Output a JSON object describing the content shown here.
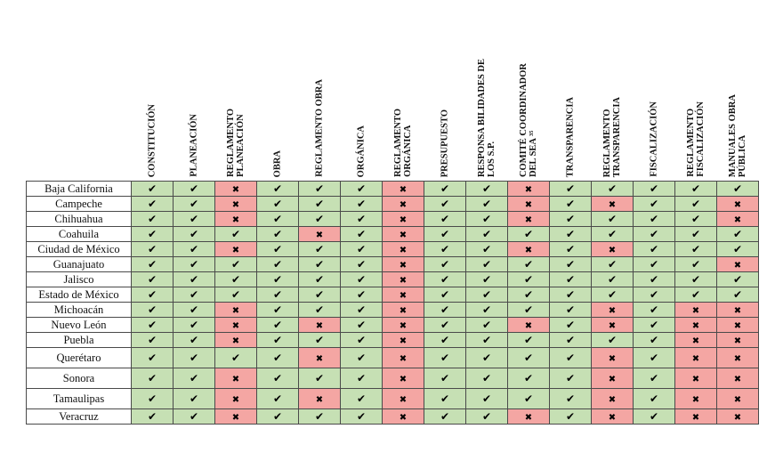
{
  "marks": {
    "yes": "✔",
    "no": "✖"
  },
  "colors": {
    "yes": "#c6e0b4",
    "no": "#f4a6a3"
  },
  "columns": [
    "CONSTITUCIÓN",
    "PLANEACIÓN",
    "REGLAMENTO\nPLANEACIÓN",
    "OBRA",
    "REGLAMENTO OBRA",
    "ORGÁNICA",
    "REGLAMENTO\nORGÁNICA",
    "PRESUPUESTO",
    "RESPONSA BILIDADES DE\nLOS S.P.",
    "COMITÉ COORDINADOR\nDEL SEA ³⁵",
    "TRANSPARENCIA",
    "REGLAMENTO\nTRANSPARENCIA",
    "FISCALIZACIÓN",
    "REGLAMENTO\nFISCALIZACIÓN",
    "MANUALES OBRA\nPÚBLICA"
  ],
  "rows": [
    {
      "state": "Baja California",
      "values": [
        1,
        1,
        0,
        1,
        1,
        1,
        0,
        1,
        1,
        0,
        1,
        1,
        1,
        1,
        1
      ]
    },
    {
      "state": "Campeche",
      "values": [
        1,
        1,
        0,
        1,
        1,
        1,
        0,
        1,
        1,
        0,
        1,
        0,
        1,
        1,
        0
      ]
    },
    {
      "state": "Chihuahua",
      "values": [
        1,
        1,
        0,
        1,
        1,
        1,
        0,
        1,
        1,
        0,
        1,
        1,
        1,
        1,
        0
      ]
    },
    {
      "state": "Coahuila",
      "values": [
        1,
        1,
        1,
        1,
        0,
        1,
        0,
        1,
        1,
        1,
        1,
        1,
        1,
        1,
        1
      ]
    },
    {
      "state": "Ciudad de México",
      "values": [
        1,
        1,
        0,
        1,
        1,
        1,
        0,
        1,
        1,
        0,
        1,
        0,
        1,
        1,
        1
      ]
    },
    {
      "state": "Guanajuato",
      "values": [
        1,
        1,
        1,
        1,
        1,
        1,
        0,
        1,
        1,
        1,
        1,
        1,
        1,
        1,
        0
      ]
    },
    {
      "state": "Jalisco",
      "values": [
        1,
        1,
        1,
        1,
        1,
        1,
        0,
        1,
        1,
        1,
        1,
        1,
        1,
        1,
        1
      ]
    },
    {
      "state": "Estado de México",
      "values": [
        1,
        1,
        1,
        1,
        1,
        1,
        0,
        1,
        1,
        1,
        1,
        1,
        1,
        1,
        1
      ]
    },
    {
      "state": "Michoacán",
      "values": [
        1,
        1,
        0,
        1,
        1,
        1,
        0,
        1,
        1,
        1,
        1,
        0,
        1,
        0,
        0
      ]
    },
    {
      "state": "Nuevo León",
      "values": [
        1,
        1,
        0,
        1,
        0,
        1,
        0,
        1,
        1,
        0,
        1,
        0,
        1,
        0,
        0
      ]
    },
    {
      "state": "Puebla",
      "values": [
        1,
        1,
        0,
        1,
        1,
        1,
        0,
        1,
        1,
        1,
        1,
        1,
        1,
        0,
        0
      ]
    },
    {
      "state": "Querétaro",
      "values": [
        1,
        1,
        1,
        1,
        0,
        1,
        0,
        1,
        1,
        1,
        1,
        0,
        1,
        0,
        0
      ]
    },
    {
      "state": "Sonora",
      "values": [
        1,
        1,
        0,
        1,
        1,
        1,
        0,
        1,
        1,
        1,
        1,
        0,
        1,
        0,
        0
      ]
    },
    {
      "state": "Tamaulipas",
      "values": [
        1,
        1,
        0,
        1,
        0,
        1,
        0,
        1,
        1,
        1,
        1,
        0,
        1,
        0,
        0
      ]
    },
    {
      "state": "Veracruz",
      "values": [
        1,
        1,
        0,
        1,
        1,
        1,
        0,
        1,
        1,
        0,
        1,
        0,
        1,
        0,
        0
      ]
    }
  ]
}
